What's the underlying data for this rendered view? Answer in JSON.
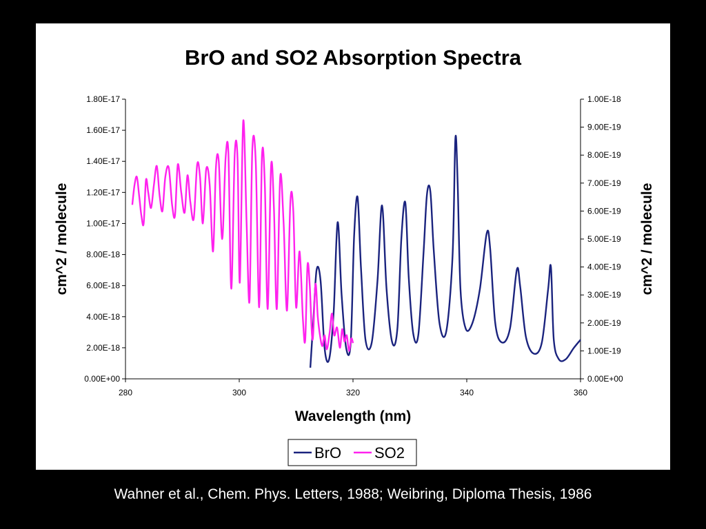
{
  "caption": "Wahner et al., Chem. Phys. Letters, 1988; Weibring, Diploma Thesis, 1986",
  "chart_data": {
    "type": "line",
    "title": "BrO and SO2 Absorption Spectra",
    "xlabel": "Wavelength (nm)",
    "ylabel_left": "cm^2 / molecule",
    "ylabel_right": "cm^2 / molecule",
    "xlim": [
      280,
      360
    ],
    "ylim_left": [
      0,
      1.8e-17
    ],
    "ylim_right": [
      0,
      1e-18
    ],
    "x_ticks": [
      "280",
      "300",
      "320",
      "340",
      "360"
    ],
    "y_left_ticks": [
      "0.00E+00",
      "2.00E-18",
      "4.00E-18",
      "6.00E-18",
      "8.00E-18",
      "1.00E-17",
      "1.20E-17",
      "1.40E-17",
      "1.60E-17",
      "1.80E-17"
    ],
    "y_right_ticks": [
      "0.00E+00",
      "1.00E-19",
      "2.00E-19",
      "3.00E-19",
      "4.00E-19",
      "5.00E-19",
      "6.00E-19",
      "7.00E-19",
      "8.00E-19",
      "9.00E-19",
      "1.00E-18"
    ],
    "grid": false,
    "legend_position": "bottom-center",
    "series": [
      {
        "name": "BrO",
        "axis": "right",
        "color": "#1a237e",
        "x": [
          312.5,
          313.0,
          313.6,
          314.3,
          315.0,
          315.8,
          316.6,
          317.3,
          318.0,
          318.8,
          319.6,
          320.2,
          320.8,
          321.4,
          322.2,
          323.3,
          324.3,
          325.1,
          325.9,
          326.9,
          327.8,
          328.5,
          329.2,
          329.8,
          330.6,
          331.5,
          332.4,
          333.0,
          333.6,
          334.2,
          335.2,
          336.4,
          337.5,
          338.0,
          338.4,
          338.9,
          339.8,
          341.0,
          342.3,
          343.5,
          344.1,
          345.0,
          346.2,
          347.6,
          348.8,
          349.4,
          350.4,
          351.8,
          353.2,
          354.3,
          354.8,
          355.3,
          356.2,
          357.4,
          358.8,
          360.0
        ],
        "values": [
          4e-20,
          2e-19,
          3.9e-19,
          3.5e-19,
          1.1e-19,
          7e-20,
          2.4e-19,
          5.6e-19,
          3e-19,
          1.1e-19,
          1.3e-19,
          5.1e-19,
          6.5e-19,
          4e-19,
          1.4e-19,
          1.3e-19,
          3.5e-19,
          6.2e-19,
          3.2e-19,
          1.3e-19,
          1.8e-19,
          5e-19,
          6.3e-19,
          3.6e-19,
          1.6e-19,
          1.6e-19,
          4.5e-19,
          6.6e-19,
          6.7e-19,
          4.6e-19,
          2e-19,
          1.7e-19,
          4.4e-19,
          8.6e-19,
          7e-19,
          3.2e-19,
          1.8e-19,
          2e-19,
          3.2e-19,
          5.2e-19,
          4.7e-19,
          2e-19,
          1.3e-19,
          1.8e-19,
          3.9e-19,
          3.3e-19,
          1.5e-19,
          9e-20,
          1.3e-19,
          3.2e-19,
          4e-19,
          1.4e-19,
          7e-20,
          7e-20,
          1.1e-19,
          1.4e-19
        ]
      },
      {
        "name": "SO2",
        "axis": "left",
        "color": "#ff22ee",
        "x": [
          281.2,
          281.6,
          282.0,
          282.4,
          282.8,
          283.2,
          283.6,
          284.0,
          284.5,
          285.0,
          285.5,
          286.0,
          286.5,
          287.0,
          287.6,
          288.2,
          288.7,
          289.2,
          289.8,
          290.4,
          290.9,
          291.4,
          292.0,
          292.6,
          293.1,
          293.6,
          294.2,
          294.8,
          295.4,
          295.9,
          296.4,
          297.0,
          297.6,
          298.1,
          298.6,
          299.2,
          299.7,
          300.1,
          300.7,
          301.3,
          301.8,
          302.3,
          302.9,
          303.5,
          304.0,
          304.5,
          305.0,
          305.6,
          306.1,
          306.6,
          307.2,
          307.8,
          308.4,
          309.0,
          309.5,
          310.0,
          310.6,
          311.2,
          311.6,
          312.0,
          312.4,
          312.9,
          313.4,
          313.8,
          314.2,
          314.6,
          315.0,
          315.4,
          315.9,
          316.3,
          316.7,
          317.2,
          317.7,
          318.1,
          318.5,
          318.9,
          319.3,
          319.7,
          320.0
        ],
        "values": [
          1.12e-17,
          1.25e-17,
          1.3e-17,
          1.18e-17,
          1.05e-17,
          1e-17,
          1.28e-17,
          1.2e-17,
          1.1e-17,
          1.25e-17,
          1.37e-17,
          1.18e-17,
          1.08e-17,
          1.3e-17,
          1.36e-17,
          1.12e-17,
          1.05e-17,
          1.38e-17,
          1.2e-17,
          1.07e-17,
          1.31e-17,
          1.14e-17,
          1.03e-17,
          1.38e-17,
          1.3e-17,
          1e-17,
          1.35e-17,
          1.25e-17,
          8.2e-18,
          1.36e-17,
          1.4e-17,
          9e-18,
          1.42e-17,
          1.45e-17,
          5.8e-18,
          1.44e-17,
          1.42e-17,
          6.2e-18,
          1.66e-17,
          1e-17,
          5e-18,
          1.48e-17,
          1.4e-17,
          4.6e-18,
          1.44e-17,
          1.25e-17,
          4.5e-18,
          1.37e-17,
          1.1e-17,
          4.5e-18,
          1.3e-17,
          1e-17,
          4.4e-18,
          1.15e-17,
          1.08e-17,
          4.6e-18,
          8.2e-18,
          3.8e-18,
          2.5e-18,
          7.3e-18,
          6e-18,
          2.5e-18,
          6.1e-18,
          4e-18,
          2.8e-18,
          2.1e-18,
          2.8e-18,
          1.9e-18,
          3e-18,
          4.2e-18,
          2.8e-18,
          3.3e-18,
          2e-18,
          3.2e-18,
          2.4e-18,
          2.8e-18,
          1.8e-18,
          2.6e-18,
          2.3e-18
        ]
      }
    ]
  }
}
